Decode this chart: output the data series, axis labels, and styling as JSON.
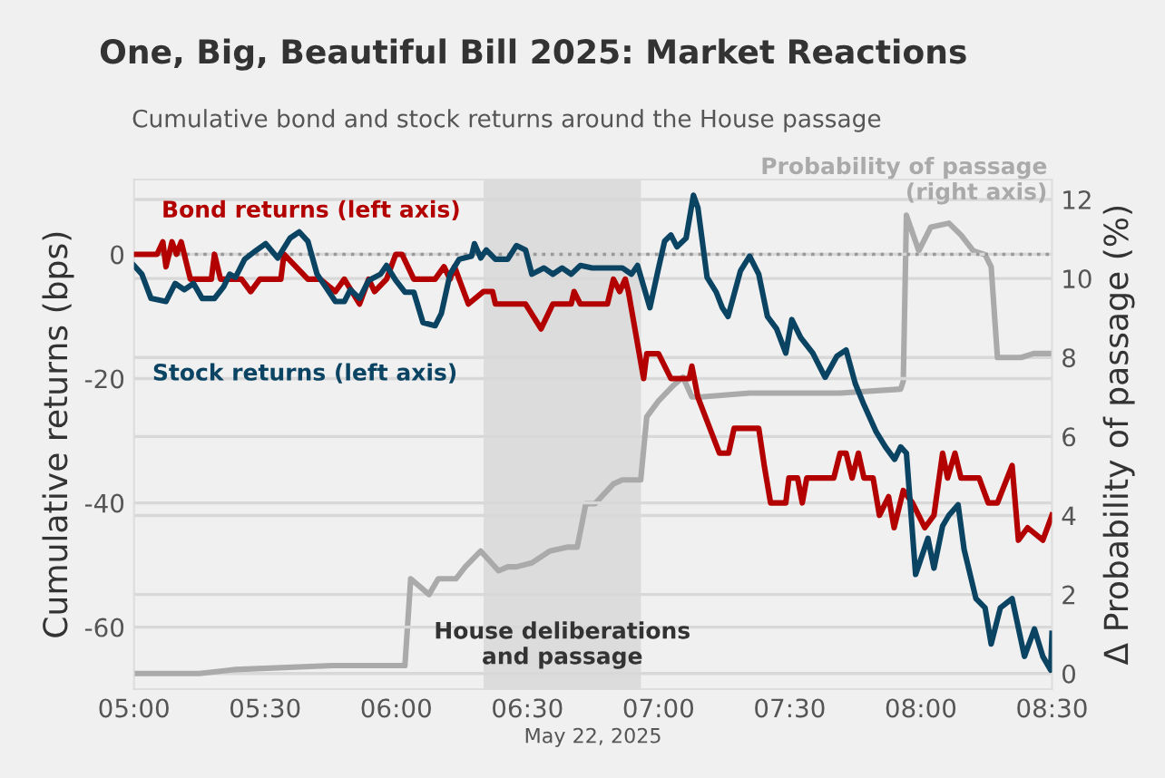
{
  "chart_data": {
    "type": "line",
    "title": "One, Big, Beautiful Bill 2025: Market Reactions",
    "subtitle": "Cumulative bond and stock returns around the House passage",
    "xlabel": "May 22, 2025",
    "ylabel": "Cumulative returns (bps)",
    "y2label": "Δ Probability of passage (%)",
    "xlim": [
      5,
      8.5
    ],
    "xticks": [
      {
        "value": 5,
        "label": "05:00"
      },
      {
        "value": 5.5,
        "label": "05:30"
      },
      {
        "value": 6,
        "label": "06:00"
      },
      {
        "value": 6.5,
        "label": "06:30"
      },
      {
        "value": 7,
        "label": "07:00"
      },
      {
        "value": 7.5,
        "label": "07:30"
      },
      {
        "value": 8,
        "label": "08:00"
      },
      {
        "value": 8.5,
        "label": "08:30"
      }
    ],
    "ylim": [
      -70,
      12
    ],
    "yticks": [
      0,
      -20,
      -40,
      -60
    ],
    "y2lim": [
      -0.4,
      12.5
    ],
    "y2ticks": [
      0,
      2,
      4,
      6,
      8,
      10,
      12
    ],
    "grid": true,
    "legend": false,
    "line_style": "solid",
    "ref_lines": [
      {
        "axis": "y",
        "value": 0,
        "color": "#999999",
        "line_style": "dotted"
      }
    ],
    "bands": [
      {
        "axis": "x",
        "from": 6.333,
        "to": 6.933,
        "label": "House deliberations\nand passage",
        "color": "#dcdcdc"
      }
    ],
    "series": [
      {
        "name": "Bond returns (left axis)",
        "color": "#b30000",
        "x": [
          5.0,
          5.088,
          5.11,
          5.122,
          5.145,
          5.162,
          5.18,
          5.215,
          5.295,
          5.307,
          5.33,
          5.41,
          5.445,
          5.48,
          5.56,
          5.572,
          5.663,
          5.71,
          5.768,
          5.802,
          5.86,
          5.895,
          5.917,
          5.963,
          5.998,
          6.022,
          6.067,
          6.148,
          6.182,
          6.205,
          6.222,
          6.275,
          6.332,
          6.367,
          6.378,
          6.493,
          6.552,
          6.597,
          6.667,
          6.678,
          6.702,
          6.805,
          6.828,
          6.852,
          6.873,
          6.885,
          6.943,
          6.955,
          7.0,
          7.047,
          7.117,
          7.127,
          7.15,
          7.232,
          7.267,
          7.288,
          7.382,
          7.403,
          7.427,
          7.485,
          7.497,
          7.53,
          7.548,
          7.565,
          7.668,
          7.692,
          7.715,
          7.738,
          7.762,
          7.783,
          7.818,
          7.842,
          7.877,
          7.898,
          7.933,
          7.968,
          8.015,
          8.05,
          8.083,
          8.102,
          8.13,
          8.153,
          8.222,
          8.257,
          8.292,
          8.348,
          8.372,
          8.407,
          8.465,
          8.5
        ],
        "values": [
          0,
          0,
          2,
          -2,
          2,
          0,
          2,
          -4,
          -4,
          0,
          -4,
          -4,
          -6,
          -4,
          -4,
          0,
          -4,
          -4,
          -6,
          -4,
          -8,
          -4,
          -6,
          -4,
          0,
          0,
          -4,
          -4,
          -2,
          -4,
          -2,
          -8,
          -6,
          -6,
          -8,
          -8,
          -12,
          -8,
          -8,
          -6,
          -8,
          -8,
          -4,
          -6,
          -4,
          -6,
          -20,
          -16,
          -16,
          -20,
          -20,
          -18,
          -23,
          -32,
          -32,
          -28,
          -28,
          -34,
          -40,
          -40,
          -36,
          -36,
          -40,
          -36,
          -36,
          -32,
          -32,
          -36,
          -32,
          -36,
          -36,
          -42,
          -39,
          -44,
          -38,
          -40,
          -44,
          -42,
          -32,
          -36,
          -32,
          -36,
          -36,
          -40,
          -40,
          -34,
          -46,
          -44,
          -46,
          -42
        ]
      },
      {
        "name": "Stock returns (left axis)",
        "color": "#0b4463",
        "x": [
          5.0,
          5.03,
          5.065,
          5.122,
          5.157,
          5.192,
          5.227,
          5.26,
          5.307,
          5.342,
          5.365,
          5.387,
          5.422,
          5.468,
          5.502,
          5.548,
          5.595,
          5.63,
          5.663,
          5.698,
          5.768,
          5.802,
          5.825,
          5.86,
          5.895,
          5.94,
          5.963,
          5.998,
          6.033,
          6.067,
          6.102,
          6.148,
          6.172,
          6.205,
          6.24,
          6.287,
          6.298,
          6.322,
          6.343,
          6.378,
          6.425,
          6.458,
          6.493,
          6.517,
          6.563,
          6.597,
          6.632,
          6.667,
          6.702,
          6.747,
          6.862,
          6.897,
          6.92,
          6.967,
          7.0,
          7.023,
          7.047,
          7.07,
          7.105,
          7.133,
          7.15,
          7.185,
          7.22,
          7.243,
          7.265,
          7.312,
          7.347,
          7.382,
          7.415,
          7.45,
          7.485,
          7.508,
          7.542,
          7.588,
          7.635,
          7.68,
          7.715,
          7.75,
          7.783,
          7.83,
          7.865,
          7.9,
          7.923,
          7.945,
          7.98,
          8.027,
          8.05,
          8.083,
          8.107,
          8.142,
          8.165,
          8.21,
          8.245,
          8.268,
          8.303,
          8.348,
          8.395,
          8.433,
          8.465,
          8.495,
          8.5
        ],
        "values": [
          -1.8,
          -3.2,
          -7.1,
          -7.6,
          -4.7,
          -5.7,
          -4.7,
          -7.1,
          -7.1,
          -5.2,
          -3.2,
          -3.7,
          -0.8,
          0.7,
          1.7,
          -0.6,
          2.6,
          3.6,
          2.1,
          -3.2,
          -7.6,
          -7.6,
          -5.7,
          -7.1,
          -4.2,
          -3.2,
          -1.8,
          -4.2,
          -6.1,
          -6.1,
          -11,
          -11.5,
          -9.5,
          -3.2,
          -0.8,
          -0.3,
          1.7,
          -0.6,
          0.7,
          -0.8,
          -0.8,
          1.4,
          0.7,
          -3.2,
          -2.2,
          -3.2,
          -2.2,
          -3.2,
          -1.8,
          -2.2,
          -2.2,
          -3.2,
          -1.8,
          -8.6,
          -2.2,
          2.1,
          3.1,
          1.2,
          2.6,
          9.5,
          7.5,
          -3.7,
          -6.1,
          -8.6,
          -10,
          -2.7,
          -0.3,
          -3.2,
          -10,
          -12,
          -15.9,
          -10.5,
          -13.4,
          -15.9,
          -19.8,
          -16.4,
          -15.4,
          -20.8,
          -24.2,
          -28.6,
          -31,
          -33,
          -31,
          -32,
          -51.5,
          -45.7,
          -50.5,
          -43.7,
          -42,
          -40.3,
          -47.5,
          -55.4,
          -56.9,
          -62.7,
          -56.9,
          -55.4,
          -64.7,
          -60.3,
          -64.7,
          -66.9,
          -61
        ]
      },
      {
        "name": "Probability of passage\n(right axis)",
        "color": "#aaaaaa",
        "axis": "y2",
        "x": [
          5.0,
          5.25,
          5.387,
          5.757,
          6.022,
          6.033,
          6.055,
          6.125,
          6.16,
          6.193,
          6.228,
          6.263,
          6.322,
          6.39,
          6.425,
          6.458,
          6.517,
          6.585,
          6.655,
          6.69,
          6.723,
          6.758,
          6.828,
          6.862,
          6.932,
          6.955,
          7.0,
          7.058,
          7.093,
          7.127,
          7.162,
          7.347,
          7.692,
          7.923,
          7.933,
          7.945,
          7.992,
          8.038,
          8.107,
          8.153,
          8.2,
          8.245,
          8.268,
          8.292,
          8.383,
          8.43,
          8.5
        ],
        "values": [
          0,
          0,
          0.1,
          0.2,
          0.2,
          0.2,
          2.4,
          2.0,
          2.4,
          2.4,
          2.4,
          2.7,
          3.1,
          2.6,
          2.7,
          2.7,
          2.8,
          3.1,
          3.2,
          3.2,
          4.3,
          4.3,
          4.8,
          4.9,
          4.9,
          6.5,
          6.9,
          7.3,
          7.5,
          7.0,
          7.0,
          7.1,
          7.1,
          7.2,
          7.4,
          11.6,
          10.7,
          11.3,
          11.4,
          11.1,
          10.7,
          10.6,
          10.3,
          8.0,
          8.0,
          8.1,
          8.1
        ]
      }
    ]
  }
}
